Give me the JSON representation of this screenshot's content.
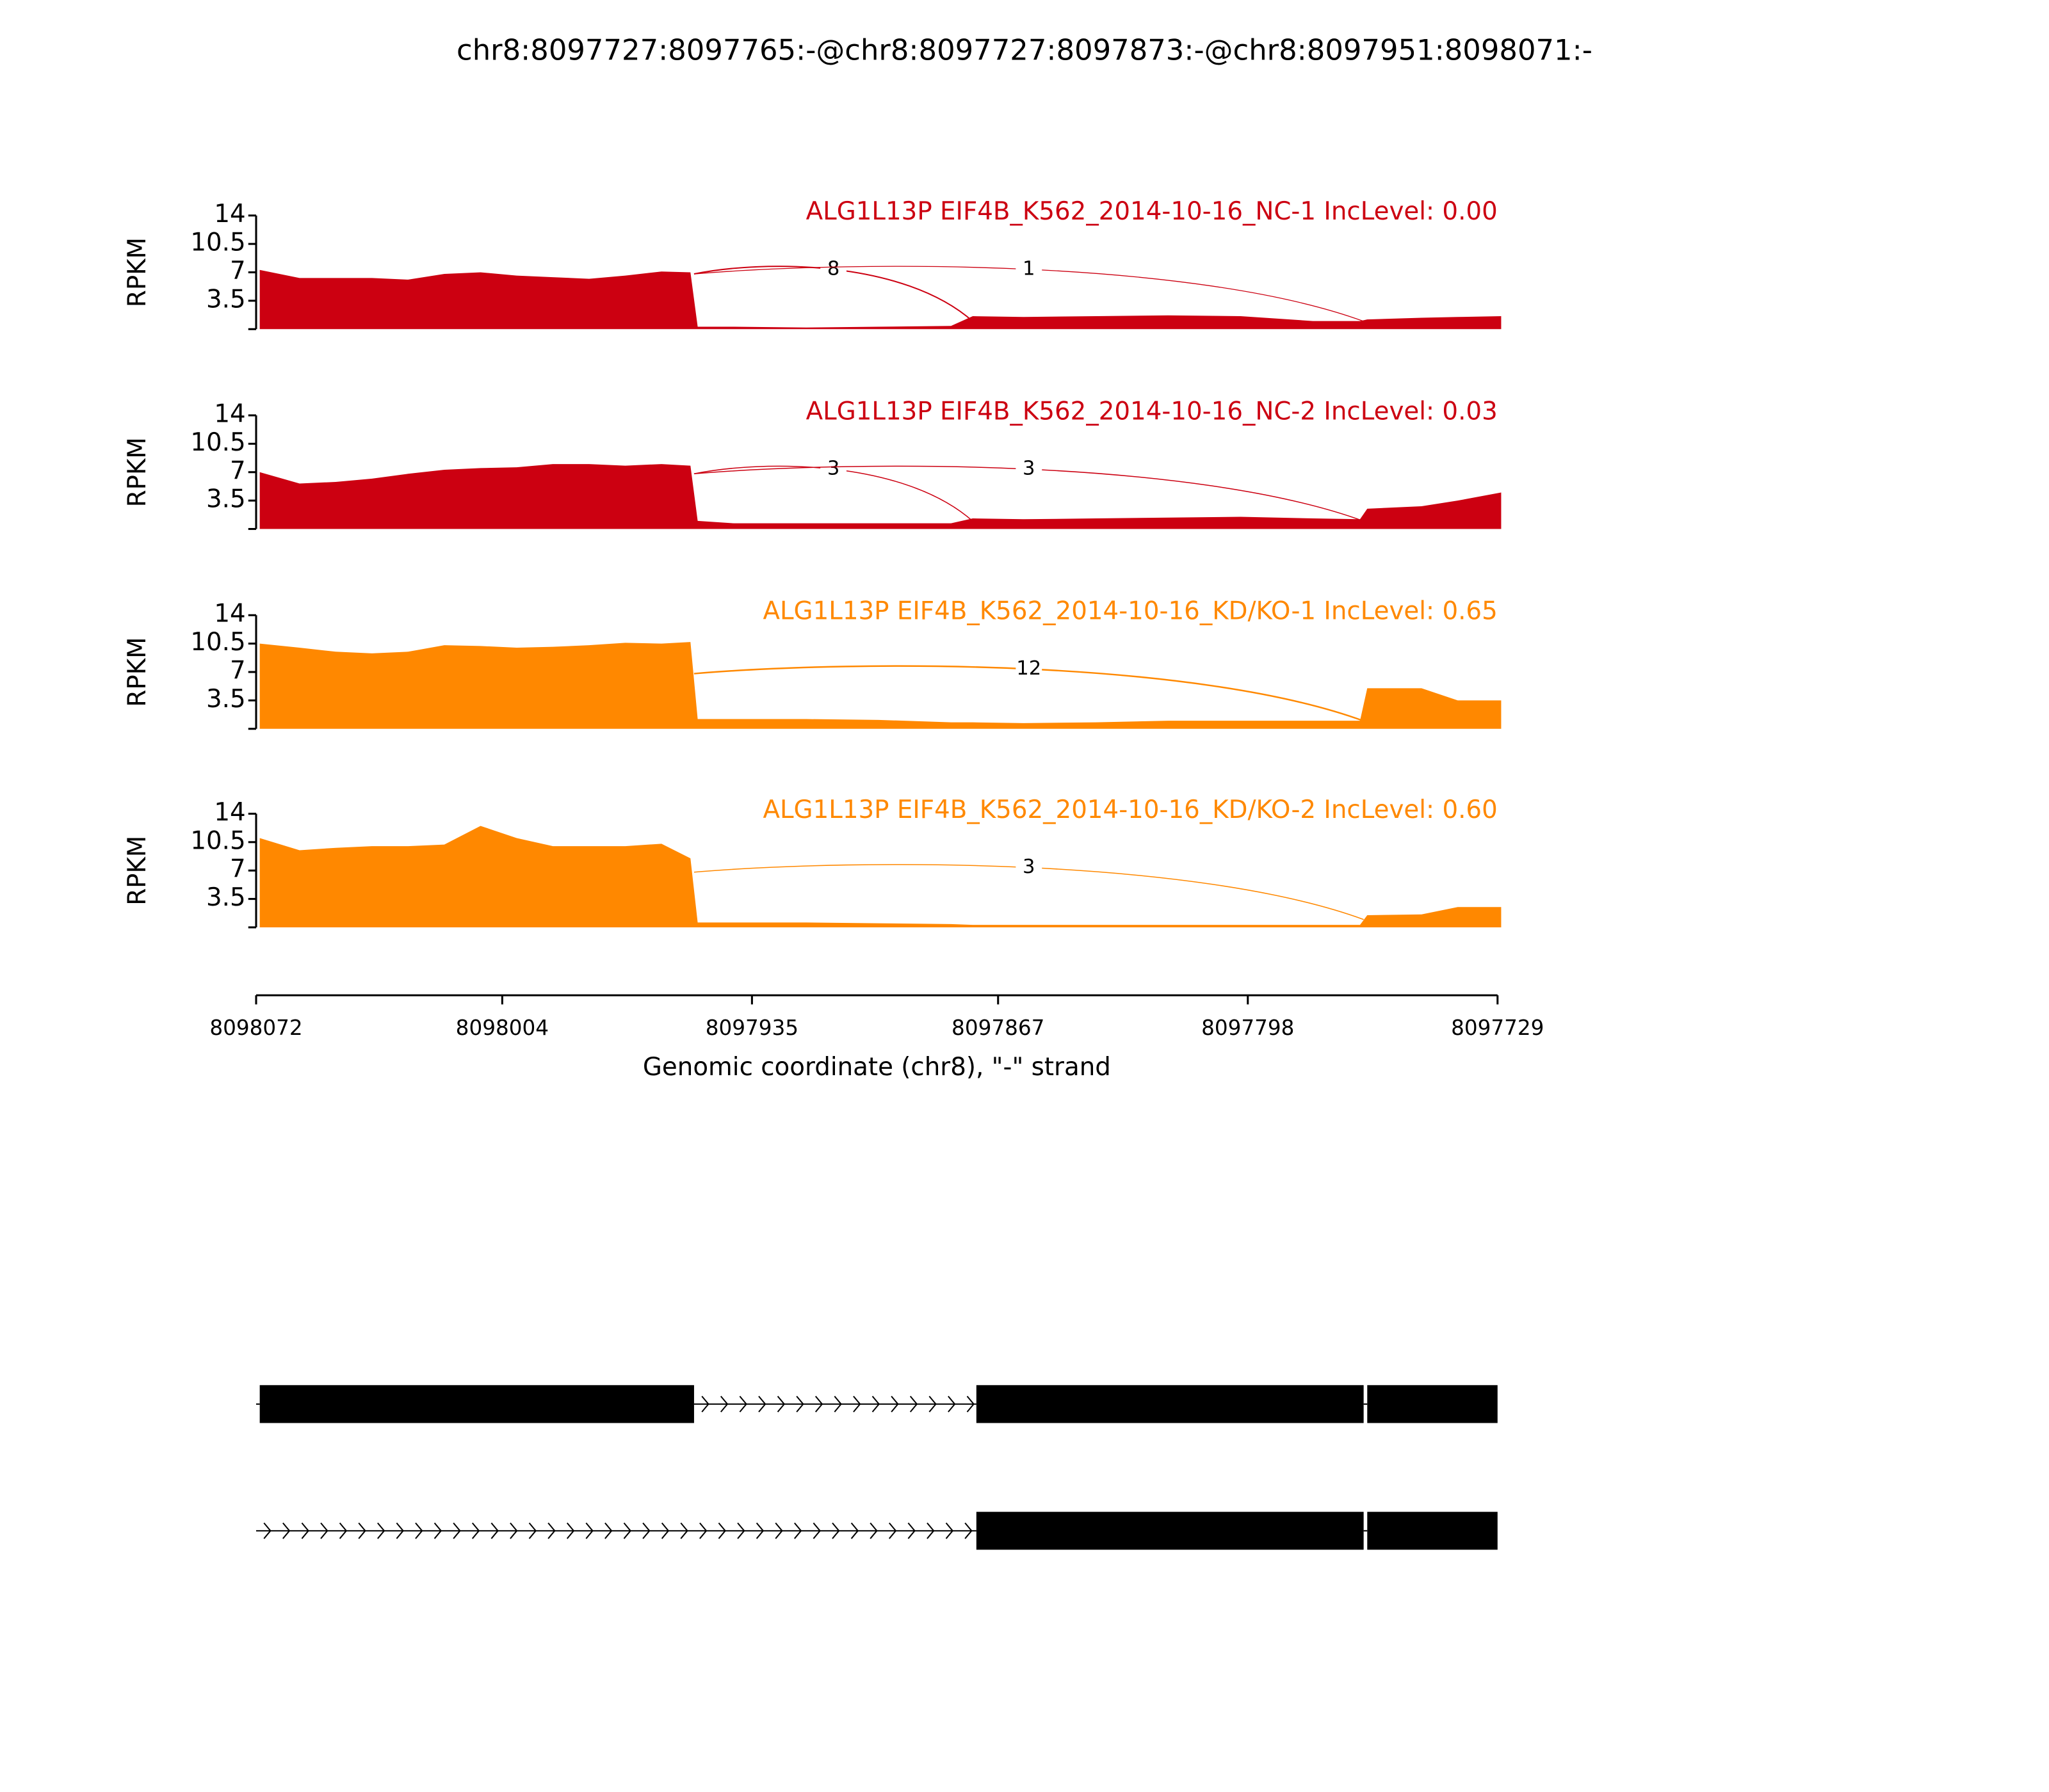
{
  "chart_data": {
    "type": "sashimi",
    "title": "chr8:8097727:8097765:-@chr8:8097727:8097873:-@chr8:8097951:8098071:-",
    "xlabel": "Genomic coordinate (chr8), \"-\" strand",
    "xlim": [
      8098072,
      8097729
    ],
    "xticks": [
      8098072,
      8098004,
      8097935,
      8097867,
      8097798,
      8097729
    ],
    "x": [
      8098071,
      8098060,
      8098050,
      8098040,
      8098030,
      8098020,
      8098010,
      8098000,
      8097990,
      8097980,
      8097970,
      8097960,
      8097952,
      8097950,
      8097940,
      8097920,
      8097900,
      8097880,
      8097874,
      8097860,
      8097840,
      8097820,
      8097800,
      8097780,
      8097767,
      8097765,
      8097750,
      8097740,
      8097728
    ],
    "ylabel": "RPKM",
    "ylim": [
      0,
      14
    ],
    "yticks": [
      3.5,
      7,
      10.5,
      14
    ],
    "series": [
      {
        "name": "ALG1L13P EIF4B_K562_2014-10-16_NC-1 IncLevel: 0.00",
        "color": "#cc0011",
        "values": [
          7.3,
          6.3,
          6.3,
          6.3,
          6.1,
          6.8,
          7,
          6.6,
          6.4,
          6.2,
          6.6,
          7.1,
          7,
          0.3,
          0.3,
          0.2,
          0.3,
          0.4,
          1.6,
          1.5,
          1.6,
          1.7,
          1.6,
          1,
          1,
          1.2,
          1.4,
          1.5,
          1.6
        ],
        "junctions": [
          {
            "start": 8097951,
            "end": 8097874,
            "count": 8
          },
          {
            "start": 8097951,
            "end": 8097766,
            "count": 1
          }
        ]
      },
      {
        "name": "ALG1L13P EIF4B_K562_2014-10-16_NC-2 IncLevel: 0.03",
        "color": "#cc0011",
        "values": [
          7,
          5.6,
          5.8,
          6.2,
          6.8,
          7.3,
          7.5,
          7.6,
          8,
          8,
          7.8,
          8,
          7.8,
          1,
          0.7,
          0.7,
          0.7,
          0.7,
          1.3,
          1.2,
          1.3,
          1.4,
          1.5,
          1.3,
          1.2,
          2.5,
          2.8,
          3.5,
          4.5
        ],
        "junctions": [
          {
            "start": 8097951,
            "end": 8097874,
            "count": 3
          },
          {
            "start": 8097951,
            "end": 8097766,
            "count": 3
          }
        ]
      },
      {
        "name": "ALG1L13P EIF4B_K562_2014-10-16_KD/KO-1 IncLevel: 0.65",
        "color": "#ff8800",
        "values": [
          10.5,
          10,
          9.5,
          9.3,
          9.5,
          10.3,
          10.2,
          10,
          10.1,
          10.3,
          10.6,
          10.5,
          10.7,
          1.2,
          1.2,
          1.2,
          1.1,
          0.8,
          0.8,
          0.7,
          0.8,
          1,
          1,
          1,
          1,
          5,
          5,
          3.5,
          3.5
        ],
        "junctions": [
          {
            "start": 8097951,
            "end": 8097766,
            "count": 12
          }
        ]
      },
      {
        "name": "ALG1L13P EIF4B_K562_2014-10-16_KD/KO-2 IncLevel: 0.60",
        "color": "#ff8800",
        "values": [
          11,
          9.5,
          9.8,
          10,
          10,
          10.2,
          12.5,
          11,
          10,
          10,
          10,
          10.3,
          8.5,
          0.6,
          0.6,
          0.6,
          0.5,
          0.4,
          0.3,
          0.3,
          0.3,
          0.3,
          0.3,
          0.3,
          0.3,
          1.5,
          1.6,
          2.5,
          2.5
        ],
        "junctions": [
          {
            "start": 8097951,
            "end": 8097766,
            "count": 3
          }
        ]
      }
    ],
    "transcripts": [
      {
        "exons": [
          [
            8098071,
            8097951
          ],
          [
            8097873,
            8097766
          ],
          [
            8097765,
            8097727
          ]
        ]
      },
      {
        "exons": [
          [
            8097873,
            8097766
          ],
          [
            8097765,
            8097727
          ]
        ]
      }
    ]
  }
}
